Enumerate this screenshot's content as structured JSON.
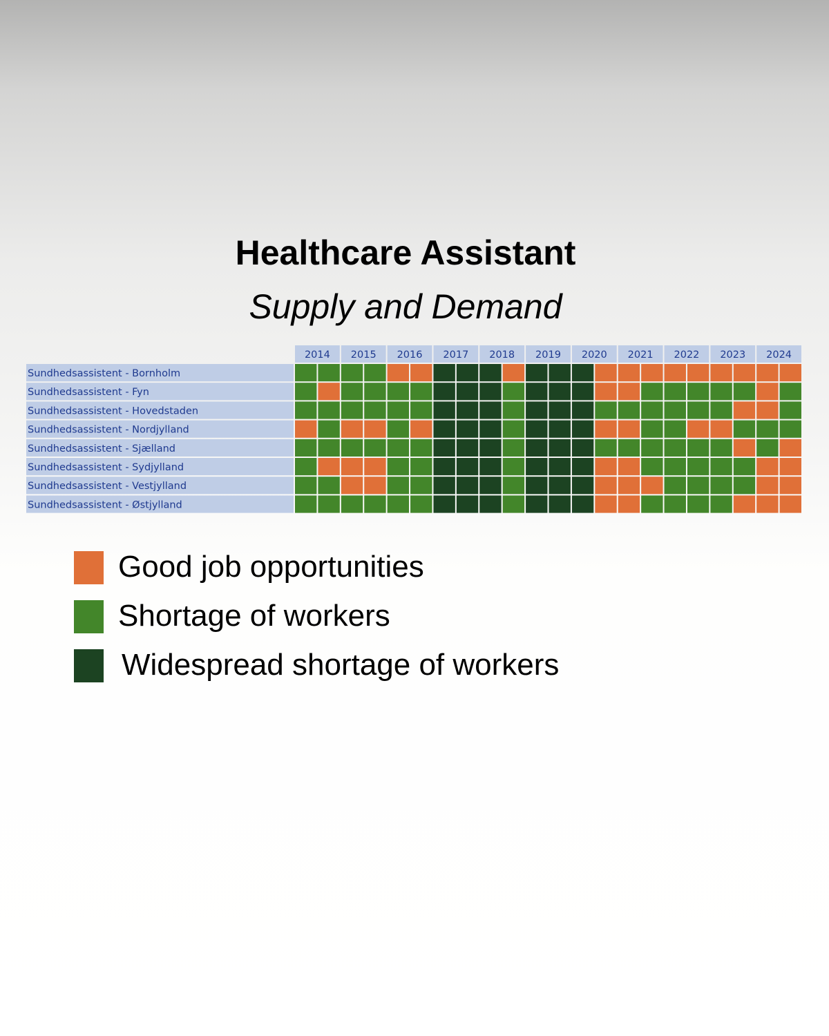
{
  "title": "Healthcare Assistant",
  "subtitle": "Supply and Demand",
  "colors": {
    "good": "#e07038",
    "shortage": "#43862a",
    "widespread": "#1c4322",
    "label_bg": "#bfcde6",
    "label_text": "#1f3a8f"
  },
  "legend": [
    {
      "key": "good",
      "label": "Good job opportunities"
    },
    {
      "key": "shortage",
      "label": "Shortage of workers"
    },
    {
      "key": "widespread",
      "label": "Widespread shortage of workers"
    }
  ],
  "chart_data": {
    "type": "heatmap",
    "years": [
      "2014",
      "2015",
      "2016",
      "2017",
      "2018",
      "2019",
      "2020",
      "2021",
      "2022",
      "2023",
      "2024"
    ],
    "periods_per_year": 2,
    "value_key": {
      "O": "good",
      "G": "shortage",
      "D": "widespread"
    },
    "rows": [
      {
        "label": "Sundhedsassistent - Bornholm",
        "values": "GGGGOODDDODDDOOOOOOOOO"
      },
      {
        "label": "Sundhedsassistent - Fyn",
        "values": "GOGGGGDDDGDDDOOGGGGGOG"
      },
      {
        "label": "Sundhedsassistent - Hovedstaden",
        "values": "GGGGGGDDDGDDDGGGGGGOOG"
      },
      {
        "label": "Sundhedsassistent - Nordjylland",
        "values": "OGOOGODDDGDDDOOGGOOGGG"
      },
      {
        "label": "Sundhedsassistent - Sjælland",
        "values": "GGGGGGDDDGDDDGGGGGGOGO"
      },
      {
        "label": "Sundhedsassistent - Sydjylland",
        "values": "GOOOGGDDDGDDDOOGGGGGOO"
      },
      {
        "label": "Sundhedsassistent - Vestjylland",
        "values": "GGOOGGDDDGDDDOOOGGGGOO"
      },
      {
        "label": "Sundhedsassistent - Østjylland",
        "values": "GGGGGGDDDGDDDOOGGGGOOO"
      }
    ]
  }
}
